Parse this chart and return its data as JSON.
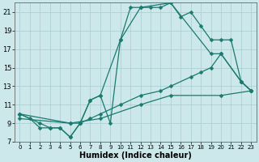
{
  "xlabel": "Humidex (Indice chaleur)",
  "xlim": [
    -0.5,
    23.5
  ],
  "ylim": [
    7,
    22
  ],
  "yticks": [
    7,
    9,
    11,
    13,
    15,
    17,
    19,
    21
  ],
  "xticks": [
    0,
    1,
    2,
    3,
    4,
    5,
    6,
    7,
    8,
    9,
    10,
    11,
    12,
    13,
    14,
    15,
    16,
    17,
    18,
    19,
    20,
    21,
    22,
    23
  ],
  "bg_color": "#cce8eb",
  "grid_color": "#aecfd4",
  "line_color": "#1a7a6e",
  "line1_x": [
    0,
    1,
    2,
    3,
    4,
    5,
    6,
    7,
    8,
    9,
    10,
    11,
    12,
    13,
    14,
    15,
    16,
    17,
    18,
    19,
    20,
    21,
    22,
    23
  ],
  "line1_y": [
    10,
    9.5,
    8.5,
    8.5,
    8.5,
    7.5,
    9.0,
    11.5,
    12.0,
    9.0,
    18.0,
    21.5,
    21.5,
    21.5,
    21.5,
    22.0,
    20.5,
    21.0,
    19.5,
    18.0,
    18.0,
    18.0,
    13.5,
    12.5
  ],
  "line2_x": [
    0,
    2,
    3,
    4,
    5,
    6,
    7,
    8,
    10,
    12,
    15,
    19,
    20,
    22,
    23
  ],
  "line2_y": [
    10,
    9.0,
    8.5,
    8.5,
    7.5,
    9.0,
    11.5,
    12.0,
    18.0,
    21.5,
    22.0,
    16.5,
    16.5,
    13.5,
    12.5
  ],
  "line3_x": [
    0,
    5,
    6,
    7,
    8,
    10,
    12,
    14,
    15,
    17,
    18,
    19,
    20,
    22,
    23
  ],
  "line3_y": [
    10,
    9.0,
    9.0,
    9.5,
    10.0,
    11.0,
    12.0,
    12.5,
    13.0,
    14.0,
    14.5,
    15.0,
    16.5,
    13.5,
    12.5
  ],
  "line4_x": [
    0,
    5,
    8,
    12,
    15,
    20,
    23
  ],
  "line4_y": [
    9.5,
    9.0,
    9.5,
    11.0,
    12.0,
    12.0,
    12.5
  ],
  "markersize": 2.5,
  "linewidth": 0.9
}
